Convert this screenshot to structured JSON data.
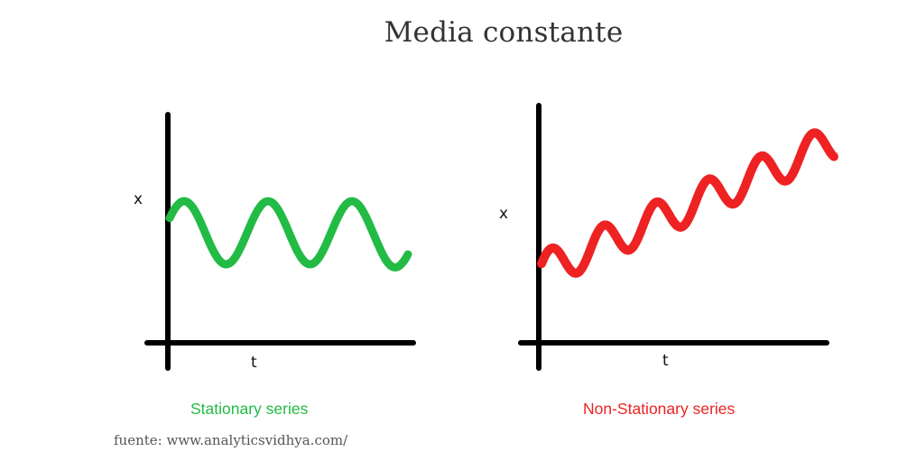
{
  "title": "Media constante",
  "colors": {
    "stationary": "#22bb45",
    "non_stationary": "#ee2222",
    "axes": "#000000"
  },
  "panels": [
    {
      "x_label": "x",
      "t_label": "t",
      "caption": "Stationary series"
    },
    {
      "x_label": "x",
      "t_label": "t",
      "caption": "Non-Stationary series"
    }
  ],
  "source": "fuente: www.analyticsvidhya.com/"
}
